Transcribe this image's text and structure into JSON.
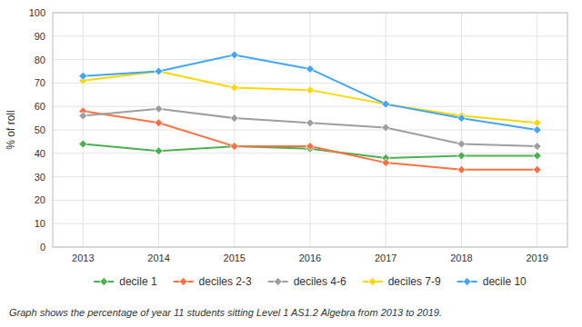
{
  "chart_data": {
    "type": "line",
    "ylabel": "% of roll",
    "caption": "Graph shows the percentage of year 11 students sitting Level 1 AS1.2 Algebra from 2013 to 2019.",
    "x": [
      2013,
      2014,
      2015,
      2016,
      2017,
      2018,
      2019
    ],
    "xlim": [
      2012.6,
      2019.4
    ],
    "xticks": [
      2013,
      2014,
      2015,
      2016,
      2017,
      2018,
      2019
    ],
    "ylim": [
      0,
      100
    ],
    "yticks": [
      0,
      10,
      20,
      30,
      40,
      50,
      60,
      70,
      80,
      90,
      100
    ],
    "grid": true,
    "legend": "bottom",
    "series": [
      {
        "name": "decile 1",
        "color": "#4CAF50",
        "marker": "diamond",
        "line_style": "solid",
        "values": [
          44,
          41,
          43,
          42,
          38,
          39,
          39
        ]
      },
      {
        "name": "deciles 2-3",
        "color": "#FF7043",
        "marker": "diamond",
        "line_style": "solid",
        "values": [
          58,
          53,
          43,
          43,
          36,
          33,
          33
        ]
      },
      {
        "name": "deciles 4-6",
        "color": "#9E9E9E",
        "marker": "diamond",
        "line_style": "solid",
        "values": [
          56,
          59,
          55,
          53,
          51,
          44,
          43
        ]
      },
      {
        "name": "deciles 7-9",
        "color": "#FFD600",
        "marker": "diamond",
        "line_style": "solid",
        "values": [
          71,
          75,
          68,
          67,
          61,
          56,
          53
        ]
      },
      {
        "name": "decile 10",
        "color": "#42A5F5",
        "marker": "diamond",
        "line_style": "solid",
        "values": [
          73,
          75,
          82,
          76,
          61,
          55,
          50
        ]
      }
    ]
  }
}
